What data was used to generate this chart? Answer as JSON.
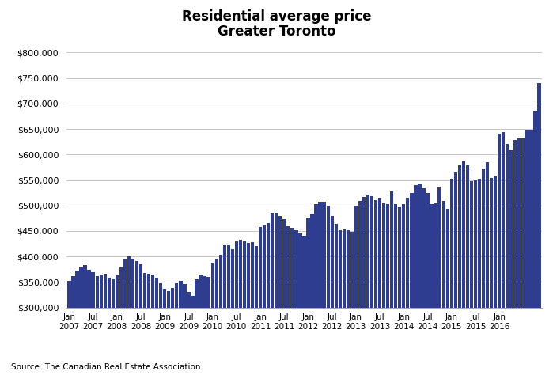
{
  "title_line1": "Residential average price",
  "title_line2": "Greater Toronto",
  "bar_color": "#2E3D8F",
  "background_color": "#FFFFFF",
  "source_text": "Source: The Canadian Real Estate Association",
  "ylim": [
    300000,
    800000
  ],
  "yticks": [
    300000,
    350000,
    400000,
    450000,
    500000,
    550000,
    600000,
    650000,
    700000,
    750000,
    800000
  ],
  "xtick_labels": [
    "Jan\n2007",
    "Jul\n2007",
    "Jan\n2008",
    "Jul\n2008",
    "Jan\n2009",
    "Jul\n2009",
    "Jan\n2010",
    "Jul\n2010",
    "Jan\n2011",
    "Jul\n2011",
    "Jan\n2012",
    "Jul\n2012",
    "Jan\n2013",
    "Jul\n2013",
    "Jan\n2014",
    "Jul\n2014",
    "Jan\n2015",
    "Jul\n2015",
    "Jan\n2016"
  ],
  "xtick_positions": [
    0,
    6,
    12,
    18,
    24,
    30,
    36,
    42,
    48,
    54,
    60,
    66,
    72,
    78,
    84,
    90,
    96,
    102,
    108
  ],
  "values": [
    352000,
    362000,
    372000,
    378000,
    383000,
    374000,
    370000,
    362000,
    364000,
    366000,
    358000,
    355000,
    364000,
    378000,
    394000,
    400000,
    396000,
    391000,
    385000,
    368000,
    366000,
    364000,
    358000,
    348000,
    336000,
    332000,
    338000,
    348000,
    352000,
    346000,
    330000,
    322000,
    355000,
    364000,
    362000,
    360000,
    388000,
    395000,
    404000,
    422000,
    422000,
    414000,
    430000,
    433000,
    430000,
    427000,
    428000,
    420000,
    457000,
    461000,
    465000,
    486000,
    486000,
    480000,
    474000,
    460000,
    456000,
    452000,
    446000,
    441000,
    476000,
    484000,
    503000,
    508000,
    508000,
    499000,
    480000,
    464000,
    452000,
    453000,
    452000,
    448000,
    500000,
    509000,
    517000,
    521000,
    519000,
    510000,
    515000,
    504000,
    502000,
    528000,
    502000,
    496000,
    503000,
    515000,
    525000,
    540000,
    543000,
    534000,
    524000,
    503000,
    504000,
    536000,
    509000,
    494000,
    553000,
    565000,
    578000,
    586000,
    579000,
    548000,
    550000,
    553000,
    573000,
    585000,
    554000,
    557000,
    641000,
    644000,
    621000,
    609000,
    628000,
    632000,
    631000,
    648000,
    648000,
    685000,
    740000
  ]
}
